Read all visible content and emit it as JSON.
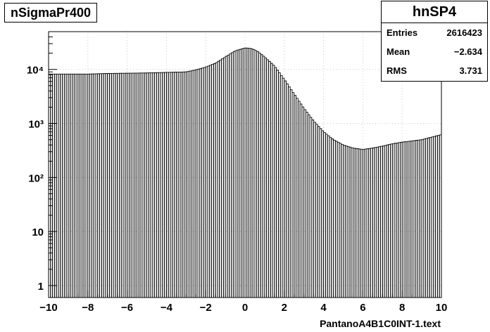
{
  "chart_data": {
    "type": "bar",
    "title": "nSigmaPr400",
    "xlabel": "PantanoA4B1C0INT-1.text",
    "ylabel": "",
    "xlim": [
      -10,
      10
    ],
    "ylim": [
      0.6,
      50000
    ],
    "yscale": "log",
    "grid": true,
    "bins": 200,
    "x": [
      -10.0,
      -9.0,
      -8.0,
      -7.0,
      -6.0,
      -5.0,
      -4.0,
      -3.0,
      -2.5,
      -2.0,
      -1.5,
      -1.0,
      -0.5,
      0.0,
      0.3,
      0.6,
      1.0,
      1.5,
      2.0,
      2.5,
      3.0,
      3.5,
      4.0,
      4.5,
      5.0,
      5.5,
      6.0,
      6.5,
      7.0,
      7.5,
      8.0,
      9.0,
      10.0
    ],
    "values": [
      8200,
      8200,
      8200,
      8400,
      8500,
      8600,
      8800,
      9000,
      9800,
      11000,
      13000,
      17000,
      22000,
      25000,
      24500,
      22000,
      17000,
      11500,
      6500,
      3500,
      1900,
      1100,
      700,
      500,
      400,
      350,
      330,
      350,
      380,
      420,
      450,
      500,
      620
    ],
    "xticks": [
      "−10",
      "−8",
      "−6",
      "−4",
      "−2",
      "0",
      "2",
      "4",
      "6",
      "8",
      "10"
    ],
    "yticks": [
      "1",
      "10",
      "10²",
      "10³",
      "10⁴"
    ]
  },
  "stats": {
    "name": "hnSP4",
    "rows": [
      {
        "label": "Entries",
        "value": "2616423"
      },
      {
        "label": "Mean",
        "value": "−2.634"
      },
      {
        "label": "RMS",
        "value": "3.731"
      }
    ]
  },
  "colors": {
    "bars": "#000000",
    "grid": "#c8c8c8"
  }
}
